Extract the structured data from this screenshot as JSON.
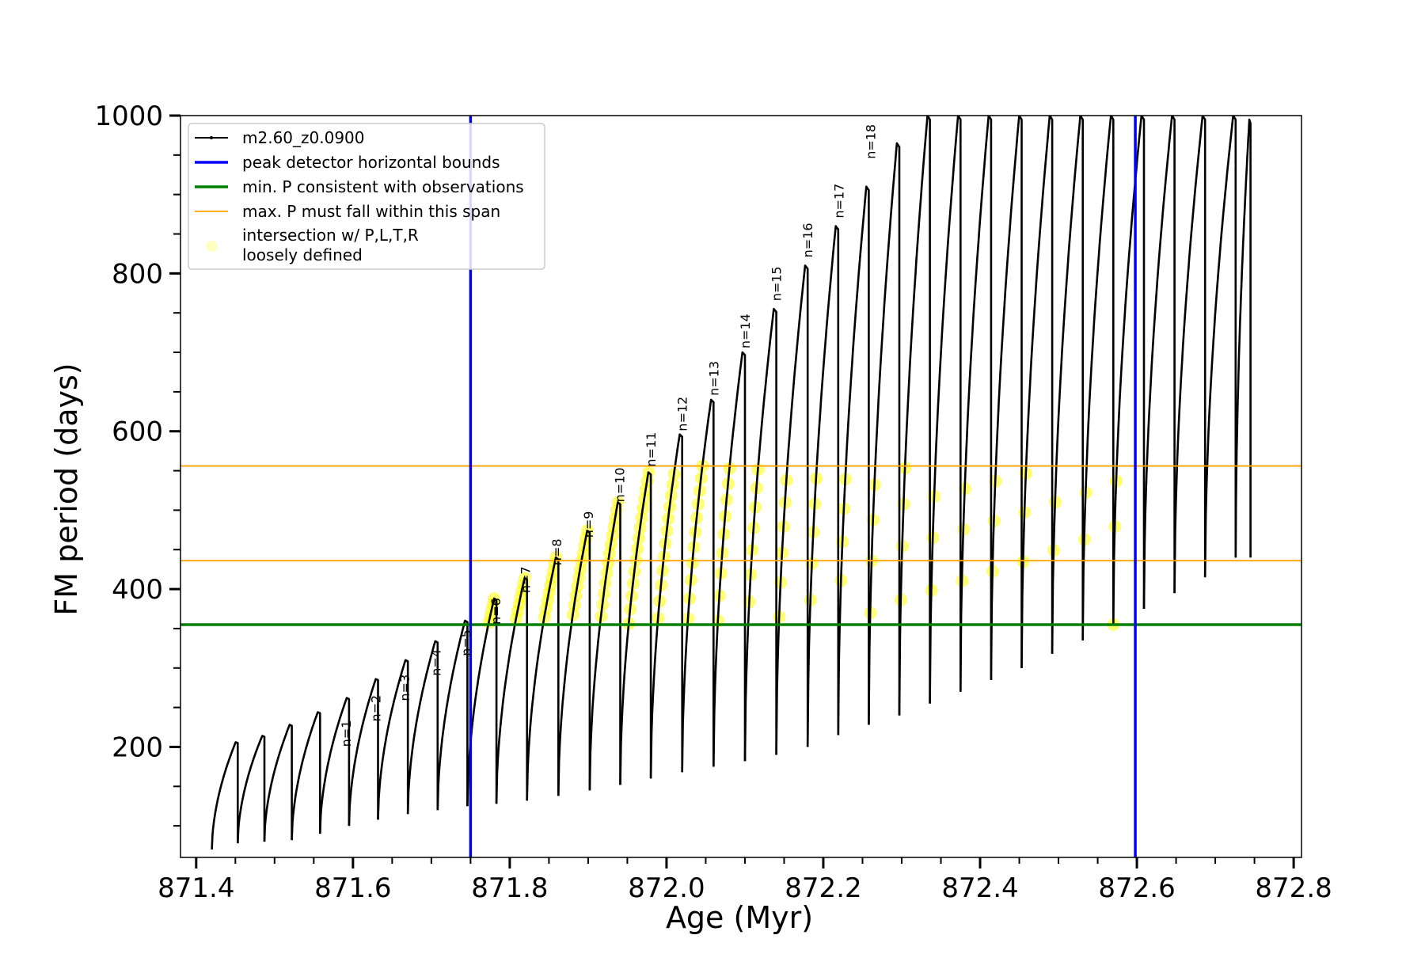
{
  "chart_data": {
    "type": "line",
    "xlabel": "Age (Myr)",
    "ylabel": "FM period (days)",
    "xlim": [
      871.38,
      872.81
    ],
    "ylim": [
      60,
      1000
    ],
    "x_ticks": [
      871.4,
      871.6,
      871.8,
      872.0,
      872.2,
      872.4,
      872.6,
      872.8
    ],
    "x_tick_labels": [
      "871.4",
      "871.6",
      "871.8",
      "872.0",
      "872.2",
      "872.4",
      "872.6",
      "872.8"
    ],
    "y_ticks": [
      200,
      400,
      600,
      800,
      1000
    ],
    "y_tick_labels": [
      "200",
      "400",
      "600",
      "800",
      "1000"
    ],
    "grid": false,
    "legend_position": "top-left",
    "legend": [
      {
        "label": "m2.60_z0.0900",
        "color": "#000000",
        "style": "line-marker"
      },
      {
        "label": "peak detector horizontal bounds",
        "color": "#0000ff",
        "style": "thick-line"
      },
      {
        "label": "min. P consistent with observations",
        "color": "#008000",
        "style": "thick-line"
      },
      {
        "label": "max. P must fall within this span",
        "color": "#ffa500",
        "style": "thin-line"
      },
      {
        "label": "intersection w/ P,L,T,R",
        "label2": "loosely defined",
        "color": "#ffff00",
        "style": "marker"
      }
    ],
    "vertical_lines": [
      {
        "x": 871.75,
        "color": "#0000ff",
        "series": "peak detector horizontal bounds"
      },
      {
        "x": 872.598,
        "color": "#0000ff",
        "series": "peak detector horizontal bounds"
      }
    ],
    "horizontal_lines": [
      {
        "y": 355,
        "color": "#008000",
        "series": "min. P consistent with observations"
      },
      {
        "y": 436,
        "color": "#ffa500",
        "series": "max. P must fall within this span"
      },
      {
        "y": 556,
        "color": "#ffa500",
        "series": "max. P must fall within this span"
      }
    ],
    "cycles": [
      {
        "start": 871.42,
        "end": 871.453,
        "min": 70,
        "peak": 206
      },
      {
        "start": 871.453,
        "end": 871.487,
        "min": 78,
        "peak": 214
      },
      {
        "start": 871.487,
        "end": 871.522,
        "min": 80,
        "peak": 228
      },
      {
        "start": 871.522,
        "end": 871.558,
        "min": 82,
        "peak": 244
      },
      {
        "start": 871.558,
        "end": 871.595,
        "min": 90,
        "peak": 262
      },
      {
        "start": 871.595,
        "end": 871.632,
        "min": 100,
        "peak": 286
      },
      {
        "start": 871.632,
        "end": 871.67,
        "min": 108,
        "peak": 310
      },
      {
        "start": 871.67,
        "end": 871.708,
        "min": 115,
        "peak": 334
      },
      {
        "start": 871.708,
        "end": 871.746,
        "min": 120,
        "peak": 360
      },
      {
        "start": 871.746,
        "end": 871.783,
        "min": 125,
        "peak": 388
      },
      {
        "start": 871.783,
        "end": 871.822,
        "min": 128,
        "peak": 414
      },
      {
        "start": 871.822,
        "end": 871.862,
        "min": 132,
        "peak": 440
      },
      {
        "start": 871.862,
        "end": 871.902,
        "min": 138,
        "peak": 474
      },
      {
        "start": 871.902,
        "end": 871.941,
        "min": 145,
        "peak": 510
      },
      {
        "start": 871.941,
        "end": 871.98,
        "min": 152,
        "peak": 548
      },
      {
        "start": 871.98,
        "end": 872.02,
        "min": 160,
        "peak": 596
      },
      {
        "start": 872.02,
        "end": 872.06,
        "min": 168,
        "peak": 640
      },
      {
        "start": 872.06,
        "end": 872.1,
        "min": 175,
        "peak": 700
      },
      {
        "start": 872.1,
        "end": 872.14,
        "min": 182,
        "peak": 755
      },
      {
        "start": 872.14,
        "end": 872.18,
        "min": 190,
        "peak": 810
      },
      {
        "start": 872.18,
        "end": 872.219,
        "min": 200,
        "peak": 860
      },
      {
        "start": 872.219,
        "end": 872.258,
        "min": 215,
        "peak": 910
      },
      {
        "start": 872.258,
        "end": 872.297,
        "min": 228,
        "peak": 965
      },
      {
        "start": 872.297,
        "end": 872.336,
        "min": 240,
        "peak": 1000
      },
      {
        "start": 872.336,
        "end": 872.375,
        "min": 255,
        "peak": 1000
      },
      {
        "start": 872.375,
        "end": 872.414,
        "min": 270,
        "peak": 1000
      },
      {
        "start": 872.414,
        "end": 872.453,
        "min": 285,
        "peak": 1000
      },
      {
        "start": 872.453,
        "end": 872.492,
        "min": 300,
        "peak": 1000
      },
      {
        "start": 872.492,
        "end": 872.531,
        "min": 318,
        "peak": 1000
      },
      {
        "start": 872.531,
        "end": 872.57,
        "min": 335,
        "peak": 1000
      },
      {
        "start": 872.57,
        "end": 872.609,
        "min": 355,
        "peak": 1000
      },
      {
        "start": 872.609,
        "end": 872.648,
        "min": 375,
        "peak": 1000
      },
      {
        "start": 872.648,
        "end": 872.687,
        "min": 395,
        "peak": 1000
      },
      {
        "start": 872.687,
        "end": 872.726,
        "min": 415,
        "peak": 1000
      },
      {
        "start": 872.726,
        "end": 872.745,
        "min": 440,
        "peak": 995
      }
    ],
    "annotations": [
      {
        "text": "n=1",
        "x": 871.597,
        "y": 200
      },
      {
        "text": "n=2",
        "x": 871.635,
        "y": 232
      },
      {
        "text": "n=3",
        "x": 871.672,
        "y": 258
      },
      {
        "text": "n=4",
        "x": 871.712,
        "y": 290
      },
      {
        "text": "n=5",
        "x": 871.75,
        "y": 315
      },
      {
        "text": "n=6",
        "x": 871.788,
        "y": 355
      },
      {
        "text": "n=7",
        "x": 871.826,
        "y": 395
      },
      {
        "text": "n=8",
        "x": 871.866,
        "y": 430
      },
      {
        "text": "n=9",
        "x": 871.906,
        "y": 465
      },
      {
        "text": "n=10",
        "x": 871.946,
        "y": 510
      },
      {
        "text": "n=11",
        "x": 871.986,
        "y": 555
      },
      {
        "text": "n=12",
        "x": 872.026,
        "y": 600
      },
      {
        "text": "n=13",
        "x": 872.066,
        "y": 645
      },
      {
        "text": "n=14",
        "x": 872.106,
        "y": 705
      },
      {
        "text": "n=15",
        "x": 872.146,
        "y": 765
      },
      {
        "text": "n=16",
        "x": 872.186,
        "y": 820
      },
      {
        "text": "n=17",
        "x": 872.226,
        "y": 870
      },
      {
        "text": "n=18",
        "x": 872.266,
        "y": 945
      }
    ]
  }
}
